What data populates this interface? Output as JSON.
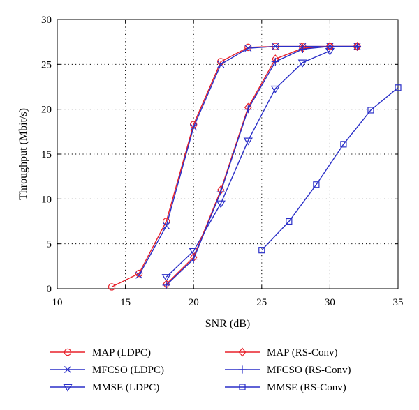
{
  "chart_data": {
    "type": "line",
    "title": "",
    "xlabel": "SNR (dB)",
    "ylabel": "Throughput (Mbit/s)",
    "xlim": [
      10,
      35
    ],
    "ylim": [
      0,
      30
    ],
    "xticks": [
      10,
      15,
      20,
      25,
      30,
      35
    ],
    "yticks": [
      0,
      5,
      10,
      15,
      20,
      25,
      30
    ],
    "grid": true,
    "legend_position": "bottom",
    "series": [
      {
        "name": "MAP (LDPC)",
        "color": "#e8202a",
        "marker": "circle",
        "x": [
          14,
          16,
          18,
          20,
          22,
          24,
          26,
          28,
          30,
          32
        ],
        "y": [
          0.2,
          1.7,
          7.5,
          18.3,
          25.3,
          26.9,
          27.0,
          27.0,
          27.0,
          27.0
        ]
      },
      {
        "name": "MFCSO (LDPC)",
        "color": "#2a2fc8",
        "marker": "x",
        "x": [
          16,
          18,
          20,
          22,
          24,
          26,
          28,
          30,
          32
        ],
        "y": [
          1.5,
          7.0,
          18.0,
          25.0,
          26.8,
          27.0,
          27.0,
          27.0,
          27.0
        ]
      },
      {
        "name": "MMSE (LDPC)",
        "color": "#2a2fc8",
        "marker": "triangle-down",
        "x": [
          18,
          20,
          22,
          24,
          26,
          28,
          30
        ],
        "y": [
          1.3,
          4.2,
          9.5,
          16.5,
          22.3,
          25.2,
          26.5
        ]
      },
      {
        "name": "MAP (RS-Conv)",
        "color": "#e8202a",
        "marker": "diamond",
        "x": [
          18,
          20,
          22,
          24,
          26,
          28,
          30,
          32
        ],
        "y": [
          0.5,
          3.5,
          11.0,
          20.2,
          25.6,
          26.8,
          27.0,
          27.0
        ]
      },
      {
        "name": "MFCSO (RS-Conv)",
        "color": "#2a2fc8",
        "marker": "plus",
        "x": [
          18,
          20,
          22,
          24,
          26,
          28,
          30,
          32
        ],
        "y": [
          0.4,
          3.3,
          10.8,
          20.0,
          25.3,
          26.7,
          27.0,
          27.0
        ]
      },
      {
        "name": "MMSE (RS-Conv)",
        "color": "#2a2fc8",
        "marker": "square",
        "x": [
          25,
          27,
          29,
          31,
          33,
          35
        ],
        "y": [
          4.3,
          7.5,
          11.6,
          16.1,
          19.9,
          22.4
        ]
      }
    ]
  }
}
